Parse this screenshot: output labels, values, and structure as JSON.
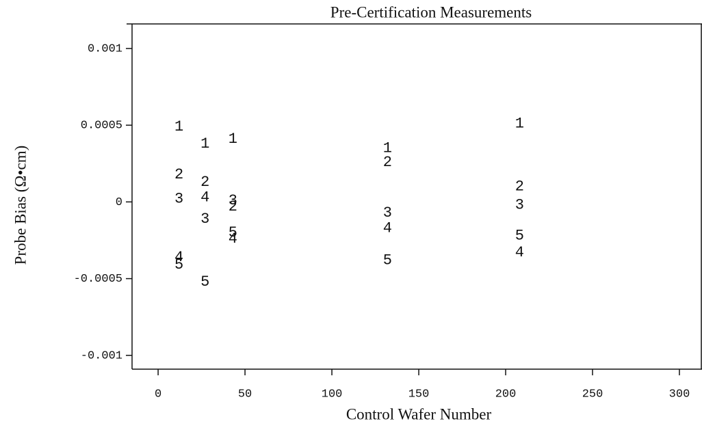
{
  "chart_data": {
    "type": "scatter",
    "title": "Pre-Certification Measurements",
    "x_label": "Control Wafer Number",
    "y_label": "Probe Bias (Ω•cm)",
    "x": [
      12,
      27,
      43,
      132,
      208
    ],
    "series": [
      {
        "name": "1",
        "color": "#111111",
        "values": [
          0.00049,
          0.00038,
          0.00041,
          0.00035,
          0.00051
        ]
      },
      {
        "name": "2",
        "color": "#111111",
        "values": [
          0.00018,
          0.00013,
          -3e-05,
          0.00026,
          0.0001
        ]
      },
      {
        "name": "3",
        "color": "#111111",
        "values": [
          2e-05,
          -0.00011,
          1e-05,
          -7e-05,
          -2e-05
        ]
      },
      {
        "name": "4",
        "color": "#111111",
        "values": [
          -0.00036,
          3e-05,
          -0.00024,
          -0.00017,
          -0.00033
        ]
      },
      {
        "name": "5",
        "color": "#111111",
        "values": [
          -0.00041,
          -0.00052,
          -0.0002,
          -0.00038,
          -0.00022
        ]
      }
    ],
    "xlim": [
      -15,
      313
    ],
    "xticks": [
      0,
      50,
      100,
      150,
      200,
      250,
      300
    ],
    "ylim": [
      -0.00109,
      0.00116
    ],
    "yticks": [
      0.001,
      0.0005,
      0,
      -0.0005,
      -0.001
    ],
    "grid": false
  }
}
